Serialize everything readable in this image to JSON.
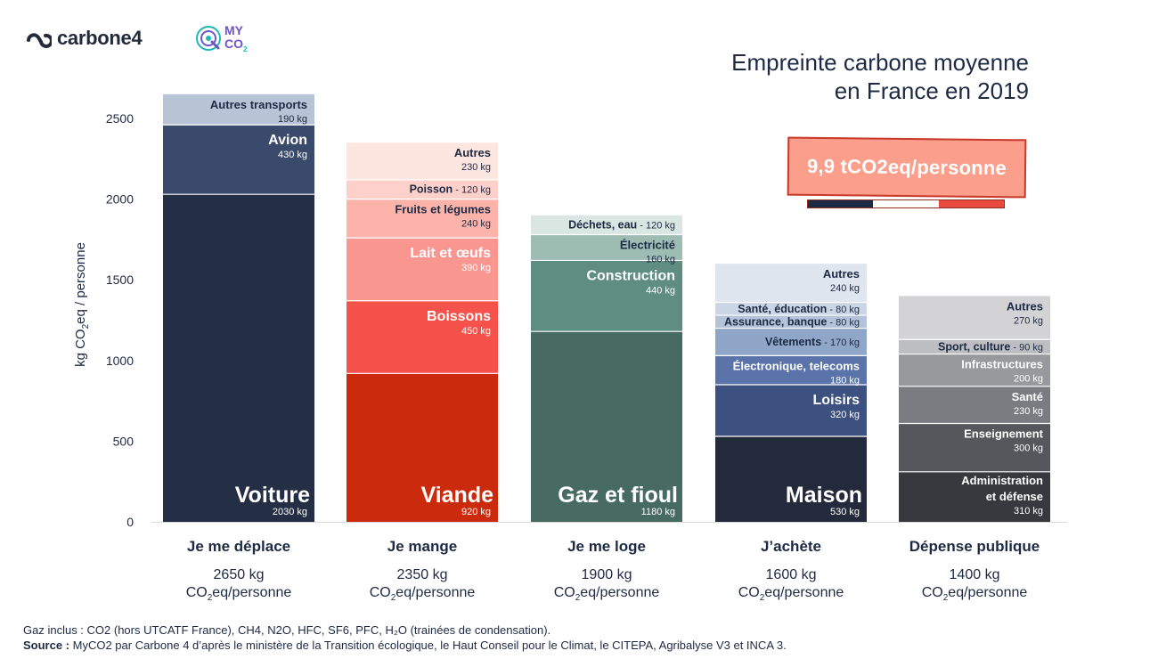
{
  "brand": {
    "carbone4": "carbone4",
    "myco2_line1": "MY",
    "myco2_line2": "CO",
    "myco2_sub": "2",
    "accent": "#1cb9b6"
  },
  "title": {
    "line1": "Empreinte carbone moyenne",
    "line2": "en France en 2019"
  },
  "total": {
    "label": "9,9 tCO2eq/personne",
    "flag_colors": [
      "#1d2a44",
      "#ffffff",
      "#e84b3c"
    ]
  },
  "footer": {
    "line1": "Gaz inclus : CO2 (hors UTCATF France), CH4, N2O, HFC, SF6, PFC, H₂O (trainées de condensation).",
    "source_label": "Source :",
    "source_text": "MyCO2 par Carbone 4 d’après le ministère de la Transition écologique, le Haut Conseil pour le Climat, le CITEPA, Agribalyse V3 et INCA 3."
  },
  "chart_data": {
    "type": "bar",
    "stacked": true,
    "ylabel_parts": [
      "kg CO",
      "2",
      "eq / personne"
    ],
    "ylim": [
      0,
      2650
    ],
    "yticks": [
      "0",
      "500",
      "1000",
      "1500",
      "2000",
      "2500"
    ],
    "ytick_values": [
      0,
      500,
      1000,
      1500,
      2000,
      2500
    ],
    "grid": false,
    "categories": [
      {
        "name": "Je me déplace",
        "total_value": "2650 kg",
        "total_unit": [
          "CO",
          "2",
          "eq/personne"
        ],
        "segments": [
          {
            "label": "Voiture",
            "value": 2030,
            "value_label": "2030 kg",
            "color": "#242f45",
            "size": "big"
          },
          {
            "label": "Avion",
            "value": 430,
            "value_label": "430 kg",
            "color": "#394a6b",
            "size": "medium"
          },
          {
            "label": "Autres transports",
            "value": 190,
            "value_label": "190 kg",
            "color": "#b7c4d6",
            "size": "small",
            "dark_text": true
          }
        ]
      },
      {
        "name": "Je mange",
        "total_value": "2350 kg",
        "total_unit": [
          "CO",
          "2",
          "eq/personne"
        ],
        "segments": [
          {
            "label": "Viande",
            "value": 920,
            "value_label": "920 kg",
            "color": "#cc2a0c",
            "size": "big"
          },
          {
            "label": "Boissons",
            "value": 450,
            "value_label": "450 kg",
            "color": "#f4524a",
            "size": "medium"
          },
          {
            "label": "Lait et œufs",
            "value": 390,
            "value_label": "390 kg",
            "color": "#f99690",
            "size": "medium"
          },
          {
            "label": "Fruits et légumes",
            "value": 240,
            "value_label": "240 kg",
            "color": "#fcb3aa",
            "size": "small",
            "dark_text": true
          },
          {
            "label": "Poisson",
            "value": 120,
            "value_label": "120 kg",
            "color": "#fdd1ca",
            "size": "inline",
            "dark_text": true
          },
          {
            "label": "Autres",
            "value": 230,
            "value_label": "230 kg",
            "color": "#fde5e0",
            "size": "small",
            "dark_text": true
          }
        ]
      },
      {
        "name": "Je me loge",
        "total_value": "1900 kg",
        "total_unit": [
          "CO",
          "2",
          "eq/personne"
        ],
        "segments": [
          {
            "label": "Gaz et fioul",
            "value": 1180,
            "value_label": "1180 kg",
            "color": "#476b60",
            "size": "big"
          },
          {
            "label": "Construction",
            "value": 440,
            "value_label": "440 kg",
            "color": "#5f8e80",
            "size": "medium"
          },
          {
            "label": "Électricité",
            "value": 160,
            "value_label": "160 kg",
            "color": "#9dbcb2",
            "size": "small",
            "dark_text": true
          },
          {
            "label": "Déchets, eau",
            "value": 120,
            "value_label": "120 kg",
            "color": "#d9e6e1",
            "size": "inline",
            "dark_text": true
          }
        ]
      },
      {
        "name": "J’achète",
        "total_value": "1600 kg",
        "total_unit": [
          "CO",
          "2",
          "eq/personne"
        ],
        "segments": [
          {
            "label": "Maison",
            "value": 530,
            "value_label": "530 kg",
            "color": "#222a3b",
            "size": "big"
          },
          {
            "label": "Loisirs",
            "value": 320,
            "value_label": "320 kg",
            "color": "#3c5180",
            "size": "medium"
          },
          {
            "label": "Électronique, telecoms",
            "value": 180,
            "value_label": "180 kg",
            "color": "#5a73a9",
            "size": "small"
          },
          {
            "label": "Vêtements",
            "value": 170,
            "value_label": "170 kg",
            "color": "#8fa6c8",
            "size": "inline",
            "dark_text": true
          },
          {
            "label": "Assurance, banque",
            "value": 80,
            "value_label": "80 kg",
            "color": "#b4c3d9",
            "size": "inline",
            "dark_text": true
          },
          {
            "label": "Santé, éducation",
            "value": 80,
            "value_label": "80 kg",
            "color": "#cad6e5",
            "size": "inline",
            "dark_text": true
          },
          {
            "label": "Autres",
            "value": 240,
            "value_label": "240 kg",
            "color": "#dfe6ef",
            "size": "small",
            "dark_text": true
          }
        ]
      },
      {
        "name": "Dépense publique",
        "total_value": "1400 kg",
        "total_unit": [
          "CO",
          "2",
          "eq/personne"
        ],
        "segments": [
          {
            "label": "Administration et défense",
            "value": 310,
            "value_label": "310 kg",
            "color": "#37393f",
            "size": "small2"
          },
          {
            "label": "Enseignement",
            "value": 300,
            "value_label": "300 kg",
            "color": "#55575c",
            "size": "small"
          },
          {
            "label": "Santé",
            "value": 230,
            "value_label": "230 kg",
            "color": "#7b7c81",
            "size": "small"
          },
          {
            "label": "Infrastructures",
            "value": 200,
            "value_label": "200 kg",
            "color": "#98999d",
            "size": "small"
          },
          {
            "label": "Sport, culture",
            "value": 90,
            "value_label": "90 kg",
            "color": "#bdbec2",
            "size": "inline",
            "dark_text": true
          },
          {
            "label": "Autres",
            "value": 270,
            "value_label": "270 kg",
            "color": "#d3d3d6",
            "size": "small",
            "dark_text": true
          }
        ]
      }
    ]
  }
}
